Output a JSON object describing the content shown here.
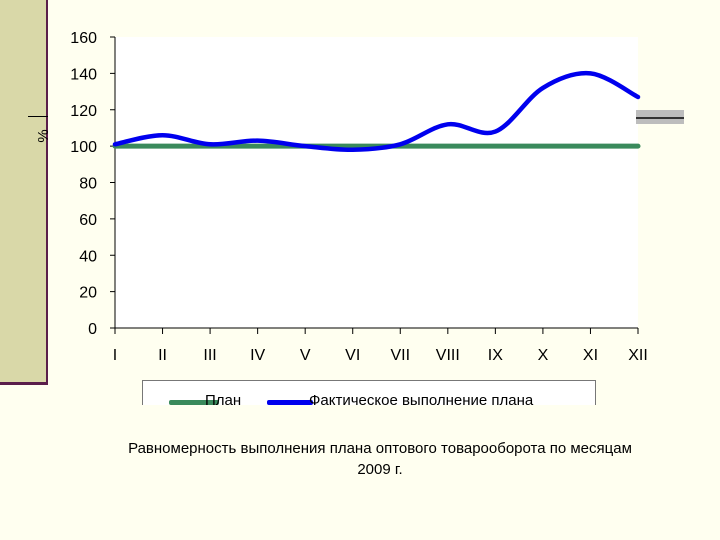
{
  "chart_data": {
    "type": "line",
    "ylabel": "%",
    "categories": [
      "I",
      "II",
      "III",
      "IV",
      "V",
      "VI",
      "VII",
      "VIII",
      "IX",
      "X",
      "XI",
      "XII"
    ],
    "ylim": [
      0,
      160
    ],
    "yticks": [
      0,
      20,
      40,
      60,
      80,
      100,
      120,
      140,
      160
    ],
    "grid": false,
    "legend_position": "bottom",
    "series": [
      {
        "name": "План",
        "color": "#3a8a5c",
        "values": [
          100,
          100,
          100,
          100,
          100,
          100,
          100,
          100,
          100,
          100,
          100,
          100
        ]
      },
      {
        "name": "Фактическое выполнение плана",
        "color": "#0000ee",
        "values": [
          101,
          106,
          101,
          103,
          100,
          98,
          101,
          112,
          108,
          132,
          140,
          127
        ]
      }
    ]
  },
  "caption": {
    "line1": "Равномерность выполнения плана оптового товарооборота по месяцам",
    "line2": "2009 г."
  }
}
